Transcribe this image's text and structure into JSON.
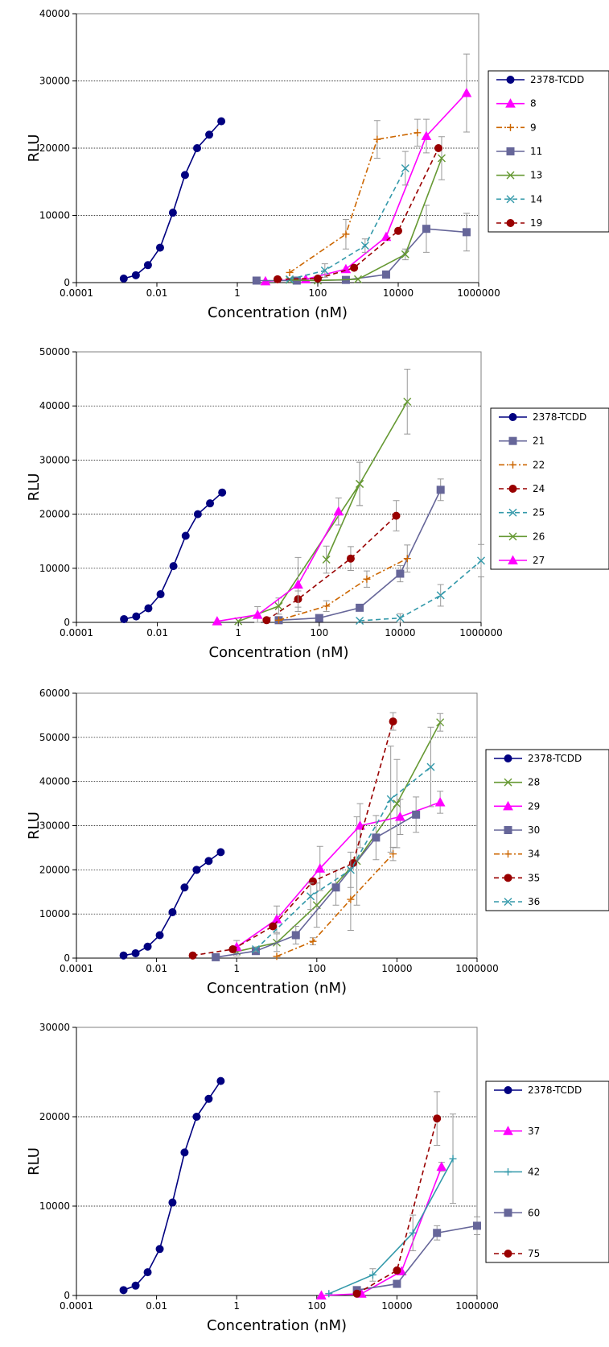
{
  "chart_data": [
    {
      "type": "line",
      "xscale": "log",
      "xlabel": "Concentration (nM)",
      "ylabel": "RLU",
      "xlim": [
        0.0001,
        1000000
      ],
      "ylim": [
        0,
        40000
      ],
      "xticks": [
        "0.0001",
        "0.01",
        "1",
        "100",
        "10000",
        "1000000"
      ],
      "yticks": [
        0,
        10000,
        20000,
        30000,
        40000
      ],
      "grid": "horizontal",
      "legend": "right",
      "series": [
        {
          "name": "2378-TCDD",
          "color": "#000080",
          "marker": "circle",
          "dash": "solid",
          "x": [
            0.0015,
            0.003,
            0.006,
            0.012,
            0.025,
            0.05,
            0.1,
            0.2,
            0.4
          ],
          "y": [
            600,
            1100,
            2600,
            5200,
            10400,
            16000,
            20000,
            22000,
            24000
          ]
        },
        {
          "name": "8",
          "color": "#FF00FF",
          "marker": "triangle",
          "dash": "solid",
          "x": [
            5,
            50,
            500,
            5000,
            50000,
            500000
          ],
          "y": [
            200,
            500,
            2000,
            6800,
            21800,
            28200
          ],
          "err": [
            0,
            0,
            0,
            0,
            2500,
            5800
          ]
        },
        {
          "name": "9",
          "color": "#CC6600",
          "marker": "plus",
          "dash": "dashdot",
          "x": [
            20,
            500,
            3000,
            30000
          ],
          "y": [
            1500,
            7200,
            21300,
            22300
          ],
          "err": [
            0,
            2200,
            2800,
            2000
          ]
        },
        {
          "name": "11",
          "color": "#666699",
          "marker": "square",
          "dash": "solid",
          "x": [
            3,
            30,
            500,
            5000,
            50000,
            500000
          ],
          "y": [
            300,
            300,
            400,
            1200,
            8000,
            7500
          ],
          "err": [
            0,
            0,
            0,
            0,
            3500,
            2800
          ]
        },
        {
          "name": "13",
          "color": "#669933",
          "marker": "x",
          "dash": "solid",
          "x": [
            20,
            100,
            1000,
            15000,
            120000
          ],
          "y": [
            400,
            300,
            500,
            4200,
            18500
          ],
          "err": [
            0,
            0,
            0,
            800,
            3200
          ]
        },
        {
          "name": "14",
          "color": "#3399AA",
          "marker": "x",
          "dash": "dashed",
          "x": [
            20,
            150,
            1500,
            15000
          ],
          "y": [
            500,
            1800,
            5500,
            17000
          ],
          "err": [
            0,
            1000,
            1000,
            2500
          ]
        },
        {
          "name": "19",
          "color": "#990000",
          "marker": "circle",
          "dash": "dashed",
          "x": [
            10,
            100,
            800,
            10000,
            100000
          ],
          "y": [
            500,
            600,
            2200,
            7700,
            20000
          ],
          "err": [
            0,
            0,
            0,
            0,
            0
          ]
        }
      ]
    },
    {
      "type": "line",
      "xscale": "log",
      "xlabel": "Concentration (nM)",
      "ylabel": "RLU",
      "xlim": [
        0.0001,
        1000000
      ],
      "ylim": [
        0,
        50000
      ],
      "xticks": [
        "0.0001",
        "0.01",
        "1",
        "100",
        "10000",
        "1000000"
      ],
      "yticks": [
        0,
        10000,
        20000,
        30000,
        40000,
        50000
      ],
      "grid": "horizontal",
      "legend": "right",
      "series": [
        {
          "name": "2378-TCDD",
          "color": "#000080",
          "marker": "circle",
          "dash": "solid",
          "x": [
            0.0015,
            0.003,
            0.006,
            0.012,
            0.025,
            0.05,
            0.1,
            0.2,
            0.4
          ],
          "y": [
            600,
            1100,
            2600,
            5200,
            10400,
            16000,
            20000,
            22000,
            24000
          ]
        },
        {
          "name": "21",
          "color": "#666699",
          "marker": "square",
          "dash": "solid",
          "x": [
            10,
            100,
            1000,
            10000,
            100000
          ],
          "y": [
            400,
            800,
            2700,
            9000,
            24500
          ],
          "err": [
            0,
            0,
            0,
            1500,
            2000
          ]
        },
        {
          "name": "22",
          "color": "#CC6600",
          "marker": "plus",
          "dash": "dashdot",
          "x": [
            10,
            150,
            1500,
            15000
          ],
          "y": [
            400,
            3000,
            8000,
            11800
          ],
          "err": [
            0,
            1000,
            1500,
            2500
          ]
        },
        {
          "name": "24",
          "color": "#990000",
          "marker": "circle",
          "dash": "dashed",
          "x": [
            5,
            30,
            600,
            8000
          ],
          "y": [
            400,
            4300,
            11800,
            19700
          ],
          "err": [
            0,
            1500,
            2200,
            2800
          ]
        },
        {
          "name": "25",
          "color": "#3399AA",
          "marker": "x",
          "dash": "dashed",
          "x": [
            1000,
            10000,
            100000,
            1000000
          ],
          "y": [
            300,
            800,
            5000,
            11400
          ],
          "err": [
            0,
            800,
            2000,
            3000
          ]
        },
        {
          "name": "26",
          "color": "#669933",
          "marker": "x",
          "dash": "solid",
          "x": [
            1,
            10,
            1000,
            150,
            1000,
            15000
          ],
          "y": [
            200,
            3000,
            25600,
            11600,
            25600,
            40800
          ],
          "err": [
            0,
            1500,
            4000,
            2500,
            4000,
            6000
          ]
        },
        {
          "name": "27",
          "color": "#FF00FF",
          "marker": "triangle",
          "dash": "solid",
          "x": [
            0.3,
            3,
            30,
            300
          ],
          "y": [
            200,
            1400,
            7000,
            20500
          ],
          "err": [
            0,
            1500,
            5000,
            2500
          ]
        }
      ]
    },
    {
      "type": "line",
      "xscale": "log",
      "xlabel": "Concentration (nM)",
      "ylabel": "RLU",
      "xlim": [
        0.0001,
        1000000
      ],
      "ylim": [
        0,
        60000
      ],
      "xticks": [
        "0.0001",
        "0.01",
        "1",
        "100",
        "10000",
        "1000000"
      ],
      "yticks": [
        0,
        10000,
        20000,
        30000,
        40000,
        50000,
        60000
      ],
      "grid": "horizontal",
      "legend": "right",
      "series": [
        {
          "name": "2378-TCDD",
          "color": "#000080",
          "marker": "circle",
          "dash": "solid",
          "x": [
            0.0015,
            0.003,
            0.006,
            0.012,
            0.025,
            0.05,
            0.1,
            0.2,
            0.4
          ],
          "y": [
            600,
            1100,
            2600,
            5200,
            10400,
            16000,
            20000,
            22000,
            24000
          ]
        },
        {
          "name": "28",
          "color": "#669933",
          "marker": "x",
          "dash": "solid",
          "x": [
            1,
            10,
            100,
            1000,
            10000,
            120000
          ],
          "y": [
            1500,
            3500,
            12000,
            22000,
            35000,
            53400
          ],
          "err": [
            1000,
            2000,
            5000,
            10000,
            10000,
            2000
          ]
        },
        {
          "name": "29",
          "color": "#FF00FF",
          "marker": "triangle",
          "dash": "solid",
          "x": [
            1,
            10,
            120,
            1200,
            12000,
            120000
          ],
          "y": [
            2500,
            8800,
            20300,
            30000,
            32000,
            35300
          ],
          "err": [
            1500,
            3000,
            5000,
            5000,
            4000,
            2500
          ]
        },
        {
          "name": "30",
          "color": "#666699",
          "marker": "square",
          "dash": "solid",
          "x": [
            0.3,
            3,
            30,
            300,
            3000,
            30000
          ],
          "y": [
            200,
            1600,
            5200,
            16000,
            27300,
            32500
          ],
          "err": [
            0,
            0,
            2000,
            4000,
            5000,
            4000
          ]
        },
        {
          "name": "34",
          "color": "#CC6600",
          "marker": "plus",
          "dash": "dashdot",
          "x": [
            10,
            80,
            700,
            8000
          ],
          "y": [
            400,
            3800,
            13300,
            23600
          ],
          "err": [
            0,
            800,
            7000,
            1500
          ]
        },
        {
          "name": "35",
          "color": "#990000",
          "marker": "circle",
          "dash": "dashed",
          "x": [
            0.08,
            0.8,
            8,
            80,
            800,
            8000
          ],
          "y": [
            600,
            2000,
            7200,
            17400,
            21500,
            53600
          ],
          "err": [
            0,
            0,
            0,
            0,
            0,
            2000
          ]
        },
        {
          "name": "36",
          "color": "#3399AA",
          "marker": "x",
          "dash": "dashed",
          "x": [
            3,
            70,
            700,
            7000,
            70000
          ],
          "y": [
            2000,
            14000,
            20000,
            36000,
            43300
          ],
          "err": [
            500,
            3000,
            4000,
            12000,
            9000
          ]
        }
      ]
    },
    {
      "type": "line",
      "xscale": "log",
      "xlabel": "Concentration (nM)",
      "ylabel": "RLU",
      "xlim": [
        0.0001,
        1000000
      ],
      "ylim": [
        0,
        30000
      ],
      "xticks": [
        "0.0001",
        "0.01",
        "1",
        "100",
        "10000",
        "1000000"
      ],
      "yticks": [
        0,
        10000,
        20000,
        30000
      ],
      "grid": "horizontal",
      "legend": "right",
      "series": [
        {
          "name": "2378-TCDD",
          "color": "#000080",
          "marker": "circle",
          "dash": "solid",
          "x": [
            0.0015,
            0.003,
            0.006,
            0.012,
            0.025,
            0.05,
            0.1,
            0.2,
            0.4
          ],
          "y": [
            600,
            1100,
            2600,
            5200,
            10400,
            16000,
            20000,
            22000,
            24000
          ]
        },
        {
          "name": "37",
          "color": "#FF00FF",
          "marker": "triangle",
          "dash": "solid",
          "x": [
            130,
            1300,
            13000,
            130000
          ],
          "y": [
            0,
            200,
            2700,
            14400
          ],
          "err": [
            0,
            0,
            0,
            500
          ]
        },
        {
          "name": "42",
          "color": "#3399AA",
          "marker": "plus",
          "dash": "solid",
          "x": [
            200,
            2500,
            25000,
            250000
          ],
          "y": [
            200,
            2300,
            7000,
            15300
          ],
          "err": [
            0,
            700,
            2000,
            5000
          ]
        },
        {
          "name": "60",
          "color": "#666699",
          "marker": "square",
          "dash": "solid",
          "x": [
            1000,
            10000,
            100000,
            1000000
          ],
          "y": [
            600,
            1300,
            7000,
            7800
          ],
          "err": [
            0,
            0,
            800,
            1000
          ]
        },
        {
          "name": "75",
          "color": "#990000",
          "marker": "circle",
          "dash": "dashed",
          "x": [
            1000,
            10000,
            100000
          ],
          "y": [
            200,
            2800,
            19800
          ],
          "err": [
            0,
            0,
            3000
          ]
        }
      ]
    }
  ]
}
